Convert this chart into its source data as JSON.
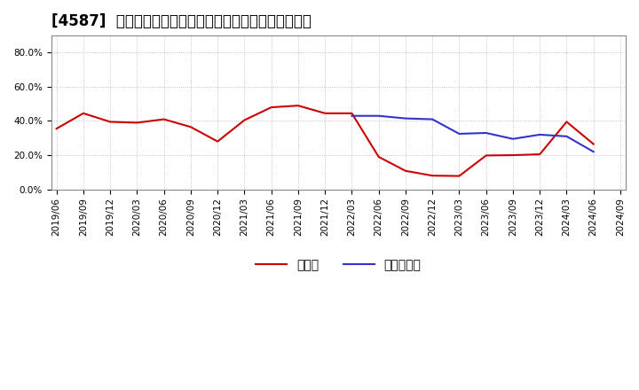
{
  "title": "[4587]  現顔金、有利子負債の総資産に対する比率の推移",
  "cash_dates": [
    "2019/06",
    "2019/09",
    "2019/12",
    "2020/03",
    "2020/06",
    "2020/09",
    "2020/12",
    "2021/03",
    "2021/06",
    "2021/09",
    "2021/12",
    "2022/03",
    "2022/06",
    "2022/09",
    "2022/12",
    "2023/03",
    "2023/06",
    "2023/09",
    "2023/12",
    "2024/03",
    "2024/06"
  ],
  "cash_values": [
    0.355,
    0.445,
    0.395,
    0.39,
    0.41,
    0.365,
    0.28,
    0.405,
    0.48,
    0.49,
    0.445,
    0.445,
    0.19,
    0.108,
    0.08,
    0.078,
    0.198,
    0.2,
    0.205,
    0.395,
    0.265
  ],
  "debt_dates": [
    "2022/03",
    "2022/06",
    "2022/09",
    "2022/12",
    "2023/03",
    "2023/06",
    "2023/09",
    "2023/12",
    "2024/03",
    "2024/06"
  ],
  "debt_values": [
    0.43,
    0.43,
    0.415,
    0.41,
    0.325,
    0.33,
    0.295,
    0.32,
    0.31,
    0.22
  ],
  "cash_color": "#cc0000",
  "debt_color": "#3333cc",
  "ylim": [
    0.0,
    0.9
  ],
  "yticks": [
    0.0,
    0.2,
    0.4,
    0.6,
    0.8
  ],
  "ytick_labels": [
    "0.0%",
    "20.0%",
    "40.0%",
    "60.0%",
    "80.0%"
  ],
  "xtick_labels": [
    "2019/06",
    "2019/09",
    "2019/12",
    "2020/03",
    "2020/06",
    "2020/09",
    "2020/12",
    "2021/03",
    "2021/06",
    "2021/09",
    "2021/12",
    "2022/03",
    "2022/06",
    "2022/09",
    "2022/12",
    "2023/03",
    "2023/06",
    "2023/09",
    "2023/12",
    "2024/03",
    "2024/06",
    "2024/09"
  ],
  "legend_cash": "現顔金",
  "legend_debt": "有利子負債",
  "background_color": "#ffffff",
  "plot_bg_color": "#ffffff",
  "grid_color": "#aaaaaa",
  "title_fontsize": 12,
  "tick_fontsize": 7.5,
  "legend_fontsize": 10
}
